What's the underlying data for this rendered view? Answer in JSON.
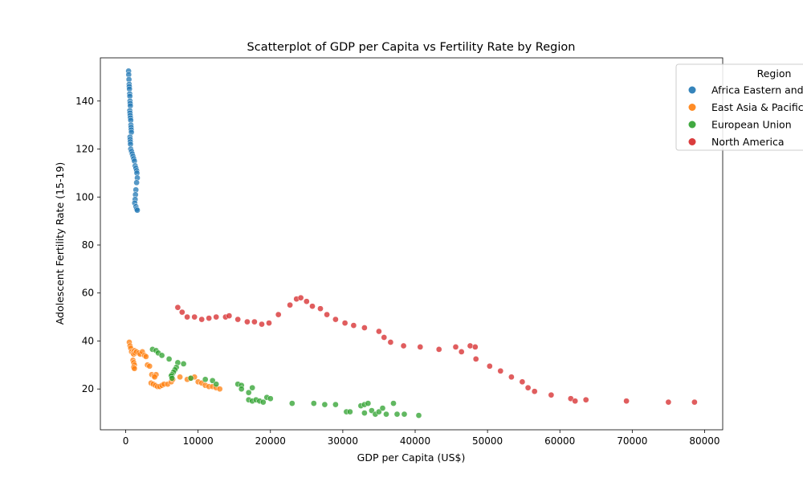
{
  "chart_data": {
    "type": "scatter",
    "title": "Scatterplot of GDP per Capita vs Fertility Rate by Region",
    "xlabel": "GDP per Capita (US$)",
    "ylabel": "Adolescent Fertility Rate (15-19)",
    "xlim": [
      -3500,
      82500
    ],
    "ylim": [
      3,
      158
    ],
    "xticks": [
      0,
      10000,
      20000,
      30000,
      40000,
      50000,
      60000,
      70000,
      80000
    ],
    "yticks": [
      20,
      40,
      60,
      80,
      100,
      120,
      140
    ],
    "grid": false,
    "legend": {
      "title": "Region",
      "placement": "top-right",
      "entries": [
        "Africa Eastern and Southern",
        "East Asia & Pacific",
        "European Union",
        "North America"
      ]
    },
    "series": [
      {
        "name": "Africa Eastern and Southern",
        "color": "#1f77b4",
        "points": [
          [
            400,
            152.5
          ],
          [
            420,
            151
          ],
          [
            450,
            149
          ],
          [
            480,
            147
          ],
          [
            500,
            146
          ],
          [
            520,
            145
          ],
          [
            550,
            143
          ],
          [
            570,
            142
          ],
          [
            600,
            140
          ],
          [
            620,
            139
          ],
          [
            640,
            138
          ],
          [
            560,
            136
          ],
          [
            590,
            135
          ],
          [
            620,
            134
          ],
          [
            650,
            133
          ],
          [
            700,
            132
          ],
          [
            720,
            130
          ],
          [
            740,
            129
          ],
          [
            760,
            128
          ],
          [
            780,
            127
          ],
          [
            600,
            125
          ],
          [
            620,
            124
          ],
          [
            640,
            123
          ],
          [
            660,
            122
          ],
          [
            700,
            120
          ],
          [
            800,
            119
          ],
          [
            900,
            118
          ],
          [
            1000,
            117
          ],
          [
            1100,
            116
          ],
          [
            1200,
            115
          ],
          [
            1300,
            113
          ],
          [
            1400,
            112
          ],
          [
            1500,
            111
          ],
          [
            1550,
            110
          ],
          [
            1600,
            108
          ],
          [
            1500,
            106
          ],
          [
            1400,
            103
          ],
          [
            1350,
            101
          ],
          [
            1300,
            99
          ],
          [
            1250,
            97.5
          ],
          [
            1400,
            96
          ],
          [
            1500,
            95
          ],
          [
            1600,
            94.5
          ]
        ]
      },
      {
        "name": "East Asia & Pacific",
        "color": "#ff7f0e",
        "points": [
          [
            500,
            39.5
          ],
          [
            600,
            38
          ],
          [
            700,
            37
          ],
          [
            800,
            35.5
          ],
          [
            1000,
            35
          ],
          [
            1100,
            34.5
          ],
          [
            1200,
            36
          ],
          [
            1300,
            35
          ],
          [
            1500,
            35.5
          ],
          [
            1800,
            35
          ],
          [
            2000,
            34.5
          ],
          [
            2300,
            35.5
          ],
          [
            2600,
            34
          ],
          [
            2800,
            33.5
          ],
          [
            1000,
            32
          ],
          [
            1100,
            31
          ],
          [
            1200,
            30
          ],
          [
            1100,
            29
          ],
          [
            1200,
            28.5
          ],
          [
            3000,
            30
          ],
          [
            3300,
            29.5
          ],
          [
            3600,
            26
          ],
          [
            3900,
            25.5
          ],
          [
            4200,
            26
          ],
          [
            4000,
            25
          ],
          [
            3500,
            22.5
          ],
          [
            3800,
            22
          ],
          [
            4100,
            21.5
          ],
          [
            4400,
            21
          ],
          [
            4700,
            21
          ],
          [
            5000,
            21.5
          ],
          [
            5300,
            22
          ],
          [
            5800,
            22
          ],
          [
            6300,
            23
          ],
          [
            6500,
            24
          ],
          [
            7500,
            25
          ],
          [
            8500,
            24
          ],
          [
            9000,
            24.5
          ],
          [
            9500,
            25
          ],
          [
            10000,
            23
          ],
          [
            10500,
            22.5
          ],
          [
            11000,
            21.5
          ],
          [
            11500,
            21
          ],
          [
            12000,
            21
          ],
          [
            12500,
            20.5
          ],
          [
            13000,
            20
          ]
        ]
      },
      {
        "name": "European Union",
        "color": "#2ca02c",
        "points": [
          [
            3700,
            36.5
          ],
          [
            4200,
            36
          ],
          [
            4500,
            35
          ],
          [
            5000,
            34
          ],
          [
            6000,
            32.5
          ],
          [
            7200,
            31
          ],
          [
            8000,
            30.5
          ],
          [
            7000,
            29
          ],
          [
            6800,
            28
          ],
          [
            6600,
            27
          ],
          [
            6400,
            26
          ],
          [
            6300,
            25.5
          ],
          [
            6400,
            24.5
          ],
          [
            9000,
            24.5
          ],
          [
            11000,
            24
          ],
          [
            12000,
            23.5
          ],
          [
            12500,
            22
          ],
          [
            15500,
            22
          ],
          [
            16000,
            21.5
          ],
          [
            17500,
            20.5
          ],
          [
            16000,
            20
          ],
          [
            17000,
            18.5
          ],
          [
            17000,
            15.5
          ],
          [
            17500,
            15
          ],
          [
            18000,
            15.5
          ],
          [
            18500,
            15
          ],
          [
            19000,
            14.5
          ],
          [
            19500,
            16.5
          ],
          [
            20000,
            16
          ],
          [
            23000,
            14
          ],
          [
            26000,
            14
          ],
          [
            27500,
            13.5
          ],
          [
            29000,
            13.5
          ],
          [
            30500,
            10.5
          ],
          [
            31000,
            10.5
          ],
          [
            32500,
            13
          ],
          [
            33000,
            13.5
          ],
          [
            33500,
            14
          ],
          [
            33000,
            10
          ],
          [
            34000,
            11
          ],
          [
            34500,
            9.5
          ],
          [
            35000,
            10.5
          ],
          [
            35500,
            12
          ],
          [
            36000,
            9.5
          ],
          [
            37000,
            14
          ],
          [
            37500,
            9.5
          ],
          [
            38500,
            9.5
          ],
          [
            40500,
            9
          ]
        ]
      },
      {
        "name": "North America",
        "color": "#d62728",
        "points": [
          [
            7200,
            54
          ],
          [
            7800,
            52
          ],
          [
            8500,
            50
          ],
          [
            9500,
            50
          ],
          [
            10500,
            49
          ],
          [
            11500,
            49.5
          ],
          [
            12500,
            50
          ],
          [
            13800,
            50
          ],
          [
            14300,
            50.5
          ],
          [
            15500,
            49
          ],
          [
            16800,
            48
          ],
          [
            17800,
            48
          ],
          [
            18800,
            47
          ],
          [
            19800,
            47.5
          ],
          [
            21100,
            51
          ],
          [
            22700,
            55
          ],
          [
            23600,
            57.5
          ],
          [
            24200,
            58
          ],
          [
            25000,
            56.5
          ],
          [
            25800,
            54.5
          ],
          [
            26900,
            53.5
          ],
          [
            27800,
            51
          ],
          [
            29000,
            49
          ],
          [
            30300,
            47.5
          ],
          [
            31500,
            46.5
          ],
          [
            33000,
            45.5
          ],
          [
            35000,
            44
          ],
          [
            35700,
            41.5
          ],
          [
            36600,
            39.5
          ],
          [
            38400,
            38
          ],
          [
            40700,
            37.5
          ],
          [
            43300,
            36.5
          ],
          [
            45600,
            37.5
          ],
          [
            46400,
            35.5
          ],
          [
            47600,
            38
          ],
          [
            48300,
            37.5
          ],
          [
            48400,
            32.5
          ],
          [
            50300,
            29.5
          ],
          [
            51800,
            27.5
          ],
          [
            53300,
            25
          ],
          [
            54800,
            23
          ],
          [
            55600,
            20.5
          ],
          [
            56500,
            19
          ],
          [
            58800,
            17.5
          ],
          [
            61500,
            16
          ],
          [
            62100,
            15
          ],
          [
            63600,
            15.5
          ],
          [
            69200,
            15
          ],
          [
            75000,
            14.5
          ],
          [
            78600,
            14.5
          ]
        ]
      }
    ]
  }
}
